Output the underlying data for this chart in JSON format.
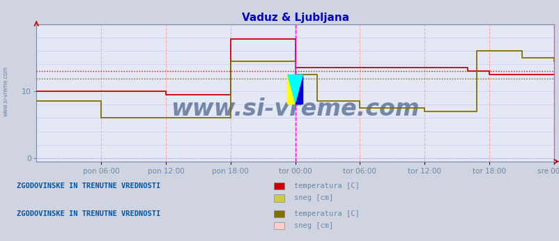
{
  "title": "Vaduz & Ljubljana",
  "title_color": "#0000cc",
  "bg_color": "#d0d4e0",
  "plot_bg_color": "#e4e8f4",
  "grid_color_v": "#ffaaaa",
  "grid_color_h": "#ccccff",
  "xlabel_color": "#6688aa",
  "ylabel_color": "#6688aa",
  "watermark": "www.si-vreme.com",
  "watermark_color": "#1a3a6e",
  "watermark_alpha": 0.55,
  "xlim": [
    0,
    576
  ],
  "ylim": [
    -0.5,
    20
  ],
  "ytick_vals": [
    0,
    10
  ],
  "xtick_labels": [
    "pon 06:00",
    "pon 12:00",
    "pon 18:00",
    "tor 00:00",
    "tor 06:00",
    "tor 12:00",
    "tor 18:00",
    "sre 00:00"
  ],
  "xtick_positions": [
    72,
    144,
    216,
    288,
    360,
    432,
    504,
    576
  ],
  "vaduz_color": "#cc0000",
  "vaduz_avg": 13.0,
  "ljub_color": "#807000",
  "ljub_avg": 11.8,
  "vaduz_avg_color": "#cc0000",
  "ljub_avg_color": "#807000",
  "magenta_line_x": 288,
  "right_magenta_x": 576,
  "vaduz_x": [
    0,
    72,
    144,
    216,
    252,
    288,
    360,
    432,
    480,
    504,
    576
  ],
  "vaduz_y": [
    10.0,
    10.0,
    9.5,
    17.8,
    17.8,
    13.5,
    13.5,
    13.5,
    13.0,
    12.5,
    12.5
  ],
  "ljub_x": [
    0,
    72,
    144,
    180,
    216,
    252,
    288,
    312,
    360,
    400,
    432,
    490,
    504,
    540,
    576
  ],
  "ljub_y": [
    8.5,
    6.0,
    6.0,
    6.0,
    14.5,
    14.5,
    12.5,
    8.5,
    7.5,
    7.5,
    7.0,
    16.0,
    16.0,
    15.0,
    14.5
  ],
  "left_text": "ZGODOVINSKE IN TRENUTNE VREDNOSTI",
  "left_text_color": "#0055aa",
  "legend1_color_temp": "#cc0000",
  "legend1_color_sneg": "#cccc44",
  "legend2_color_temp": "#807000",
  "legend2_color_sneg": "#ffcccc",
  "figsize": [
    8.03,
    3.46
  ],
  "dpi": 100
}
